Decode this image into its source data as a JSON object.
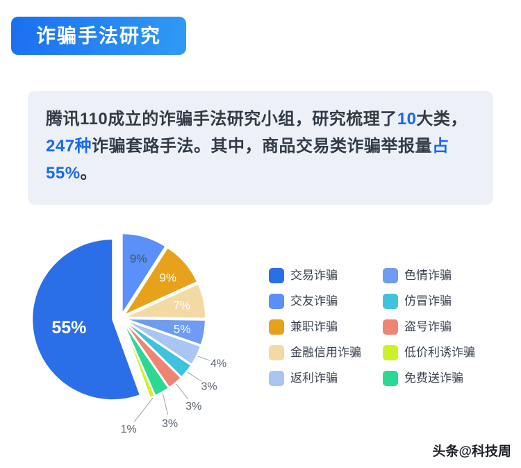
{
  "header": {
    "title": "诈骗手法研究",
    "badge_gradient": [
      "#1b6ff0",
      "#2f9bf4"
    ],
    "text_color": "#ffffff"
  },
  "intro": {
    "background": "#edf1f7",
    "text_color": "#323a47",
    "highlight_color": "#1768f2",
    "segments": [
      {
        "text": "腾讯110成立的诈骗手法研究小组，研究梳理了",
        "highlight": false
      },
      {
        "text": "10",
        "highlight": true
      },
      {
        "text": "大类，",
        "highlight": false
      },
      {
        "text": "247种",
        "highlight": true
      },
      {
        "text": "诈骗套路手法。其中，商品交易类诈骗举报量",
        "highlight": false
      },
      {
        "text": "占55%",
        "highlight": true
      },
      {
        "text": "。",
        "highlight": false
      }
    ]
  },
  "chart_data": {
    "type": "pie",
    "title": "",
    "unit": "%",
    "start": "top",
    "direction": "clockwise",
    "exploded": true,
    "slices": [
      {
        "name": "交友诈骗",
        "value": 9,
        "color": "#5b8ff9",
        "label": "9%",
        "label_inside": true,
        "label_color": "#4a5259"
      },
      {
        "name": "兼职诈骗",
        "value": 9,
        "color": "#e8a11b",
        "label": "9%",
        "label_inside": true,
        "label_color": "#ffffff"
      },
      {
        "name": "金融信用诈骗",
        "value": 7,
        "color": "#f3d9a4",
        "label": "7%",
        "label_inside": true,
        "label_color": "#ffffff"
      },
      {
        "name": "色情诈骗",
        "value": 5,
        "color": "#6d9cf2",
        "label": "5%",
        "label_inside": true,
        "label_color": "#ffffff"
      },
      {
        "name": "返利诈骗",
        "value": 4,
        "color": "#a8c5f4",
        "label": "4%",
        "label_inside": false,
        "label_color": "#59616b"
      },
      {
        "name": "仿冒诈骗",
        "value": 3,
        "color": "#3ec3dc",
        "label": "3%",
        "label_inside": false,
        "label_color": "#59616b"
      },
      {
        "name": "盗号诈骗",
        "value": 3,
        "color": "#f08472",
        "label": "3%",
        "label_inside": false,
        "label_color": "#59616b"
      },
      {
        "name": "免费送诈骗",
        "value": 3,
        "color": "#2cd993",
        "label": "3%",
        "label_inside": false,
        "label_color": "#59616b"
      },
      {
        "name": "低价利诱诈骗",
        "value": 1,
        "color": "#cbf229",
        "label": "1%",
        "label_inside": false,
        "label_color": "#59616b"
      },
      {
        "name": "交易诈骗",
        "value": 55,
        "color": "#2a6fe8",
        "label": "55%",
        "label_inside": true,
        "label_color": "#ffffff"
      }
    ],
    "legend_position": "right",
    "legend_columns": [
      [
        "交易诈骗",
        "交友诈骗",
        "兼职诈骗",
        "金融信用诈骗",
        "返利诈骗"
      ],
      [
        "色情诈骗",
        "仿冒诈骗",
        "盗号诈骗",
        "低价利诱诈骗",
        "免费送诈骗"
      ]
    ]
  },
  "footer": {
    "credit": "头条@科技周"
  }
}
